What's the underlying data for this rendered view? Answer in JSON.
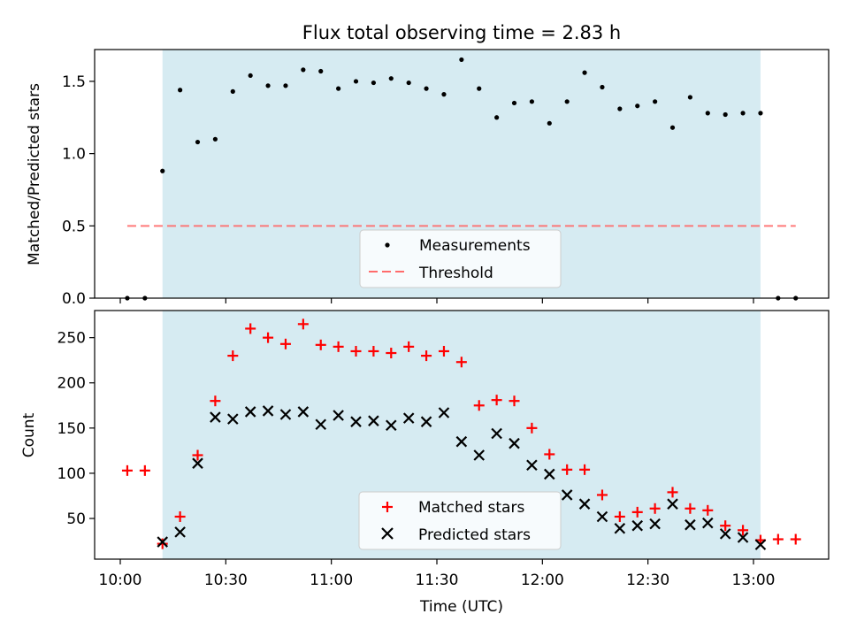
{
  "chart_data": [
    {
      "type": "scatter",
      "title": "Flux total observing time = 2.83 h",
      "xlabel": "",
      "ylabel": "Matched/Predicted stars",
      "ylim": [
        0,
        1.72
      ],
      "yticks": [
        "0.0",
        "0.5",
        "1.0",
        "1.5"
      ],
      "legend_position": "lower center",
      "shaded_region": {
        "from": "10:12",
        "to": "13:02",
        "color": "#add8e6"
      },
      "threshold": {
        "name": "Threshold",
        "value": 0.5,
        "from": "10:02",
        "to": "13:12",
        "color": "#ff6b6b"
      },
      "series": [
        {
          "name": "Measurements",
          "marker": "dot",
          "color": "#000000",
          "x": [
            "10:02",
            "10:07",
            "10:12",
            "10:17",
            "10:22",
            "10:27",
            "10:32",
            "10:37",
            "10:42",
            "10:47",
            "10:52",
            "10:57",
            "11:02",
            "11:07",
            "11:12",
            "11:17",
            "11:22",
            "11:27",
            "11:32",
            "11:37",
            "11:42",
            "11:47",
            "11:52",
            "11:57",
            "12:02",
            "12:07",
            "12:12",
            "12:17",
            "12:22",
            "12:27",
            "12:32",
            "12:37",
            "12:42",
            "12:47",
            "12:52",
            "12:57",
            "13:02",
            "13:07",
            "13:12"
          ],
          "values": [
            0.0,
            0.0,
            0.88,
            1.44,
            1.08,
            1.1,
            1.43,
            1.54,
            1.47,
            1.47,
            1.58,
            1.57,
            1.45,
            1.5,
            1.49,
            1.52,
            1.49,
            1.45,
            1.41,
            1.65,
            1.45,
            1.25,
            1.35,
            1.36,
            1.21,
            1.36,
            1.56,
            1.46,
            1.31,
            1.33,
            1.36,
            1.18,
            1.39,
            1.28,
            1.27,
            1.28,
            1.28,
            0.0,
            0.0
          ]
        }
      ]
    },
    {
      "type": "scatter",
      "xlabel": "Time (UTC)",
      "ylabel": "Count",
      "ylim": [
        5,
        280
      ],
      "yticks": [
        "50",
        "100",
        "150",
        "200",
        "250"
      ],
      "xticks": [
        "10:00",
        "10:30",
        "11:00",
        "11:30",
        "12:00",
        "12:30",
        "13:00"
      ],
      "legend_position": "lower center",
      "shaded_region": {
        "from": "10:12",
        "to": "13:02",
        "color": "#add8e6"
      },
      "series": [
        {
          "name": "Matched stars",
          "marker": "plus",
          "color": "#ff0000",
          "x": [
            "10:02",
            "10:07",
            "10:12",
            "10:17",
            "10:22",
            "10:27",
            "10:32",
            "10:37",
            "10:42",
            "10:47",
            "10:52",
            "10:57",
            "11:02",
            "11:07",
            "11:12",
            "11:17",
            "11:22",
            "11:27",
            "11:32",
            "11:37",
            "11:42",
            "11:47",
            "11:52",
            "11:57",
            "12:02",
            "12:07",
            "12:12",
            "12:17",
            "12:22",
            "12:27",
            "12:32",
            "12:37",
            "12:42",
            "12:47",
            "12:52",
            "12:57",
            "13:02",
            "13:07",
            "13:12"
          ],
          "values": [
            103,
            103,
            22,
            52,
            120,
            180,
            230,
            260,
            250,
            243,
            265,
            242,
            240,
            235,
            235,
            233,
            240,
            230,
            235,
            223,
            175,
            181,
            180,
            150,
            121,
            104,
            104,
            76,
            52,
            57,
            61,
            79,
            61,
            59,
            42,
            37,
            26,
            27,
            27
          ]
        },
        {
          "name": "Predicted stars",
          "marker": "x",
          "color": "#000000",
          "x": [
            "10:12",
            "10:17",
            "10:22",
            "10:27",
            "10:32",
            "10:37",
            "10:42",
            "10:47",
            "10:52",
            "10:57",
            "11:02",
            "11:07",
            "11:12",
            "11:17",
            "11:22",
            "11:27",
            "11:32",
            "11:37",
            "11:42",
            "11:47",
            "11:52",
            "11:57",
            "12:02",
            "12:07",
            "12:12",
            "12:17",
            "12:22",
            "12:27",
            "12:32",
            "12:37",
            "12:42",
            "12:47",
            "12:52",
            "12:57",
            "13:02"
          ],
          "values": [
            24,
            35,
            111,
            162,
            160,
            168,
            169,
            165,
            168,
            154,
            164,
            157,
            158,
            153,
            161,
            157,
            167,
            135,
            120,
            144,
            133,
            109,
            99,
            76,
            66,
            52,
            39,
            42,
            44,
            66,
            43,
            45,
            33,
            29,
            21
          ]
        }
      ]
    }
  ]
}
